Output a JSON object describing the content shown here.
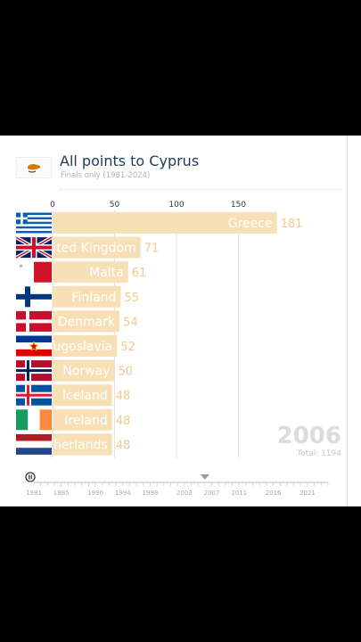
{
  "header": {
    "title": "All points to Cyprus",
    "subtitle": "Finals only (1981-2024)",
    "flag_icon": "cyprus-flag-icon"
  },
  "chart_data": {
    "type": "bar",
    "orientation": "horizontal",
    "title": "All points to Cyprus",
    "subtitle": "Finals only (1981-2024)",
    "categories": [
      "Greece",
      "United Kingdom",
      "Malta",
      "Finland",
      "Denmark",
      "Yugoslavia",
      "Norway",
      "Iceland",
      "Ireland",
      "Netherlands"
    ],
    "values": [
      181,
      71,
      61,
      55,
      54,
      52,
      50,
      48,
      48,
      48
    ],
    "xlim": [
      0,
      200
    ],
    "x_ticks": [
      0,
      50,
      100,
      150
    ],
    "grid": true,
    "bar_color": "#f7dfb6",
    "value_label_color": "#f2c98a",
    "flags": [
      "greece-flag-icon",
      "uk-flag-icon",
      "malta-flag-icon",
      "finland-flag-icon",
      "denmark-flag-icon",
      "yugoslavia-flag-icon",
      "norway-flag-icon",
      "iceland-flag-icon",
      "ireland-flag-icon",
      "netherlands-flag-icon"
    ]
  },
  "current_year": "2006",
  "total_label": "Total: 1194",
  "timeline": {
    "range": [
      1981,
      2024
    ],
    "labels": [
      "1981",
      "1985",
      "1990",
      "1994",
      "1998",
      "2003",
      "2007",
      "2011",
      "2016",
      "2021"
    ],
    "current": 2006
  },
  "colors": {
    "title": "#1f3b5c",
    "bar": "#f7dfb6",
    "year": "#dcdcdc"
  }
}
